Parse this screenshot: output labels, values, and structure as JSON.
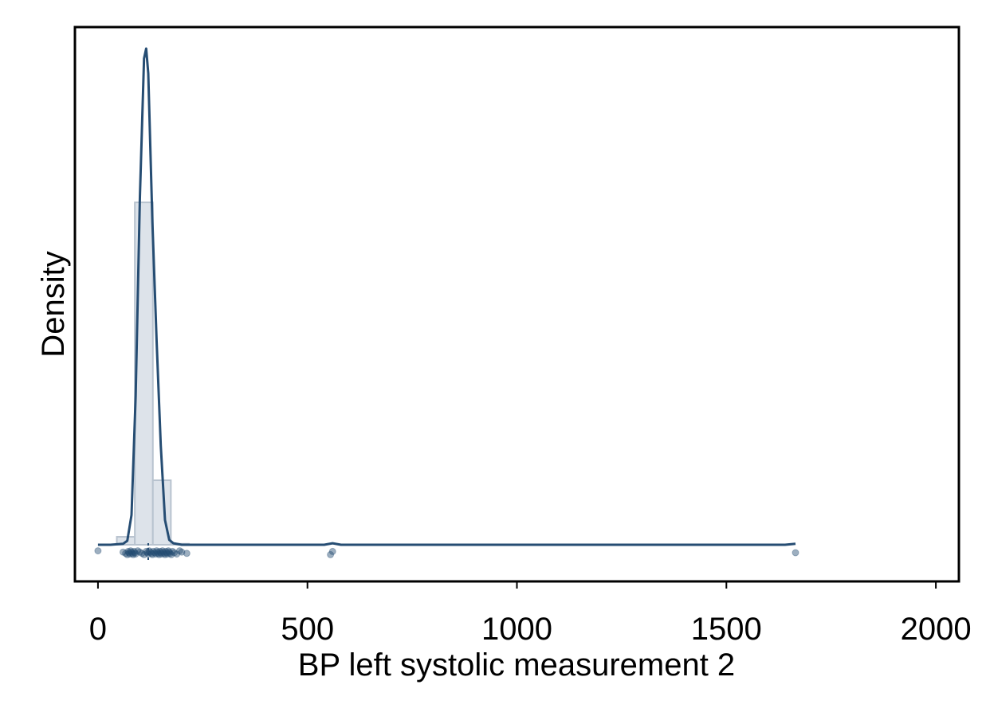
{
  "chart_data": {
    "type": "area",
    "description_kind": "histogram_with_kernel_density_and_strip",
    "xlabel": "BP left systolic measurement 2",
    "ylabel": "Density",
    "xlim": [
      -55,
      2055
    ],
    "x_ticks": [
      0,
      500,
      1000,
      1500,
      2000
    ],
    "x_tick_labels": [
      "0",
      "500",
      "1000",
      "1500",
      "2000"
    ],
    "y_ticks_shown": false,
    "grid": false,
    "legend": "none",
    "colors": {
      "density_line": "#264d73",
      "histogram_fill": "#dde3ea",
      "histogram_edge": "#b8c3cf",
      "points": "#264d73",
      "axis": "#000000",
      "background": "#ffffff"
    },
    "histogram": {
      "bin_width": 43,
      "bins": [
        {
          "x0": 45,
          "x1": 88,
          "rel_height": 0.016
        },
        {
          "x0": 88,
          "x1": 131,
          "rel_height": 0.69
        },
        {
          "x0": 131,
          "x1": 174,
          "rel_height": 0.13
        },
        {
          "x0": 174,
          "x1": 217,
          "rel_height": 0.002
        }
      ]
    },
    "density": {
      "name": "kernel density",
      "x": [
        0,
        30,
        60,
        70,
        80,
        90,
        100,
        110,
        115,
        120,
        130,
        140,
        150,
        160,
        170,
        180,
        200,
        250,
        400,
        540,
        560,
        580,
        800,
        1200,
        1640,
        1665
      ],
      "rel_y": [
        0.0,
        0.0,
        0.002,
        0.008,
        0.06,
        0.3,
        0.7,
        0.98,
        1.0,
        0.95,
        0.65,
        0.41,
        0.2,
        0.05,
        0.01,
        0.003,
        0.0,
        0.0,
        0.0,
        0.0,
        0.003,
        0.0,
        0.0,
        0.0,
        0.0,
        0.002
      ]
    },
    "strip_points": [
      0,
      60,
      66,
      70,
      72,
      74,
      76,
      78,
      80,
      82,
      84,
      86,
      88,
      90,
      95,
      100,
      105,
      110,
      115,
      118,
      120,
      122,
      125,
      128,
      130,
      132,
      135,
      138,
      140,
      142,
      144,
      146,
      148,
      150,
      152,
      154,
      156,
      158,
      160,
      162,
      164,
      166,
      168,
      170,
      172,
      175,
      178,
      182,
      188,
      195,
      200,
      212,
      555,
      560,
      1665
    ],
    "median": 120
  }
}
